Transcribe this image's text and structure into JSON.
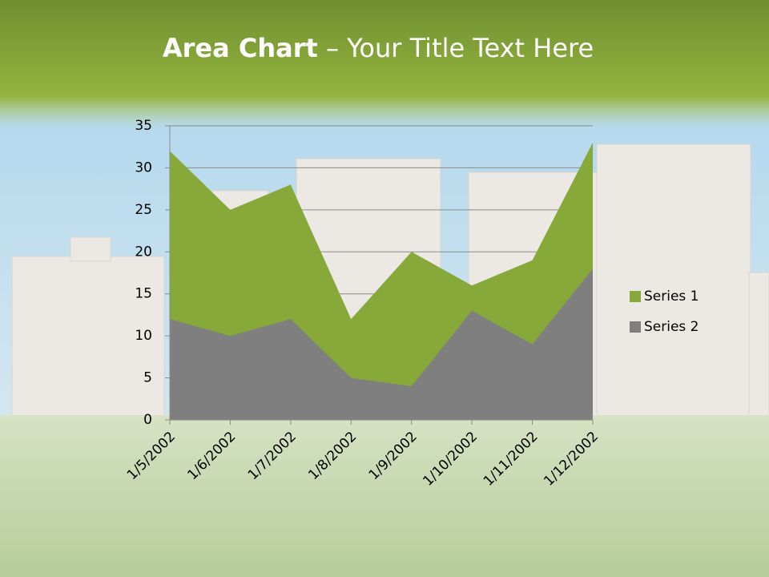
{
  "chart_data": {
    "type": "area",
    "title": [
      "Area Chart",
      " – Your Title Text Here"
    ],
    "categories": [
      "1/5/2002",
      "1/6/2002",
      "1/7/2002",
      "1/8/2002",
      "1/9/2002",
      "1/10/2002",
      "1/11/2002",
      "1/12/2002"
    ],
    "series": [
      {
        "name": "Series 1",
        "color": "#86a93a",
        "values": [
          32,
          25,
          28,
          12,
          20,
          16,
          19,
          33
        ]
      },
      {
        "name": "Series 2",
        "color": "#7f7f7f",
        "values": [
          12,
          10,
          12,
          5,
          4,
          13,
          9,
          18
        ]
      }
    ],
    "ylim": [
      0,
      35
    ],
    "yticks": [
      0,
      5,
      10,
      15,
      20,
      25,
      30,
      35
    ],
    "grid": true,
    "legend": "right"
  }
}
